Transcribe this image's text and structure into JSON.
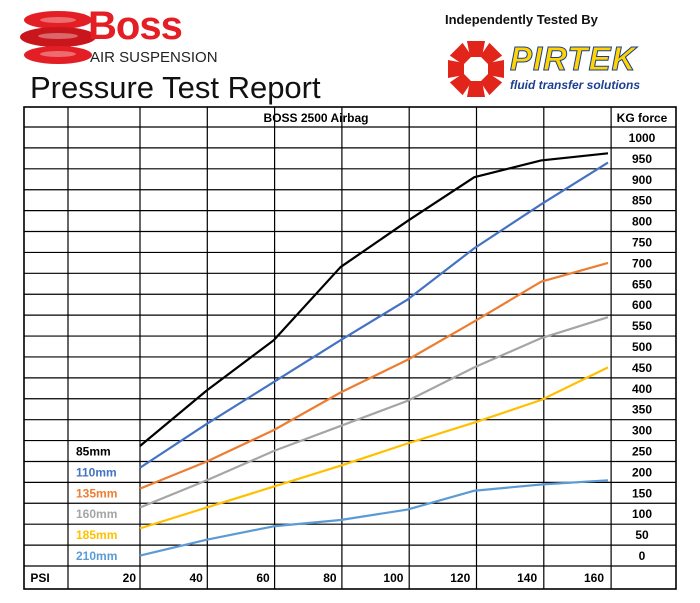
{
  "header": {
    "brand_name": "Boss",
    "brand_sub": "AIR SUSPENSION",
    "report_title": "Pressure Test Report",
    "tested_by": "Independently Tested By",
    "pirtek_name": "PIRTEK",
    "pirtek_sub": "fluid transfer solutions"
  },
  "colors": {
    "boss_red": "#e31e24",
    "pirtek_red": "#e1251b",
    "pirtek_yellow": "#ffd400",
    "pirtek_blue": "#1c3f8f"
  },
  "chart_data": {
    "type": "line",
    "title": "BOSS 2500 Airbag",
    "xlabel": "PSI",
    "ylabel": "KG force",
    "x_ticks": [
      20,
      40,
      60,
      80,
      100,
      120,
      140,
      160
    ],
    "y_ticks": [
      0,
      50,
      100,
      150,
      200,
      250,
      300,
      350,
      400,
      450,
      500,
      550,
      600,
      650,
      700,
      750,
      800,
      850,
      900,
      950,
      1000
    ],
    "xlim": [
      20,
      160
    ],
    "ylim": [
      0,
      1000
    ],
    "grid": true,
    "legend_position": "left",
    "series": [
      {
        "name": "85mm",
        "color": "#000000",
        "x": [
          20,
          40,
          60,
          80,
          100,
          120,
          140,
          160
        ],
        "y": [
          262,
          395,
          515,
          690,
          800,
          905,
          945,
          962
        ]
      },
      {
        "name": "110mm",
        "color": "#4472c4",
        "x": [
          20,
          40,
          60,
          80,
          100,
          120,
          140,
          160
        ],
        "y": [
          210,
          315,
          415,
          515,
          612,
          735,
          840,
          940
        ]
      },
      {
        "name": "135mm",
        "color": "#ed7d31",
        "x": [
          20,
          40,
          60,
          80,
          100,
          120,
          140,
          160
        ],
        "y": [
          160,
          225,
          300,
          390,
          468,
          560,
          655,
          700
        ]
      },
      {
        "name": "160mm",
        "color": "#a5a5a5",
        "x": [
          20,
          40,
          60,
          80,
          100,
          120,
          140,
          160
        ],
        "y": [
          115,
          180,
          250,
          310,
          370,
          450,
          520,
          570
        ]
      },
      {
        "name": "185mm",
        "color": "#ffc000",
        "x": [
          20,
          40,
          60,
          80,
          100,
          120,
          140,
          160
        ],
        "y": [
          65,
          115,
          165,
          215,
          268,
          318,
          372,
          450
        ]
      },
      {
        "name": "210mm",
        "color": "#5b9bd5",
        "x": [
          20,
          40,
          60,
          80,
          100,
          120,
          140,
          160
        ],
        "y": [
          0,
          38,
          70,
          85,
          110,
          155,
          170,
          180
        ]
      }
    ]
  }
}
